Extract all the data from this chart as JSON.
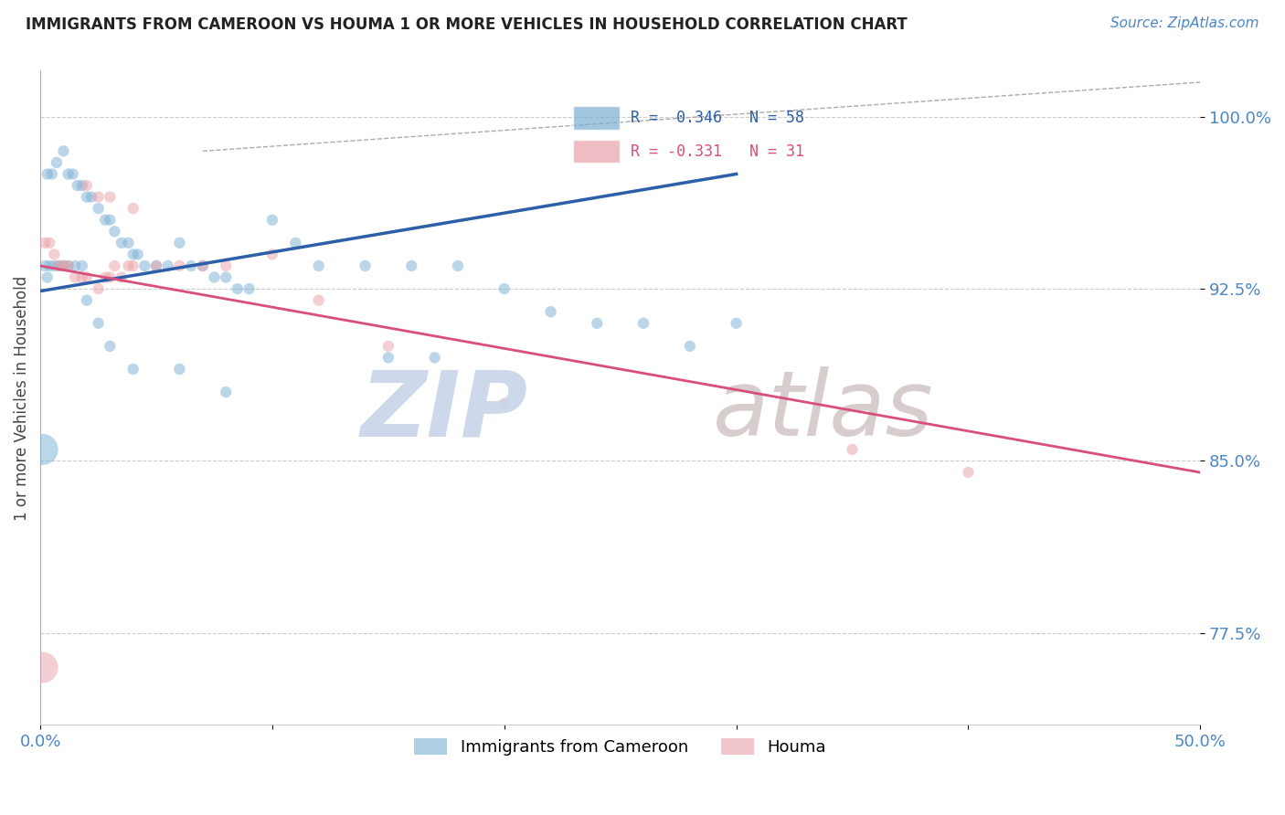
{
  "title": "IMMIGRANTS FROM CAMEROON VS HOUMA 1 OR MORE VEHICLES IN HOUSEHOLD CORRELATION CHART",
  "source_text": "Source: ZipAtlas.com",
  "ylabel": "1 or more Vehicles in Household",
  "xlim": [
    0.0,
    0.5
  ],
  "ylim": [
    0.735,
    1.02
  ],
  "yticks": [
    0.775,
    0.85,
    0.925,
    1.0
  ],
  "yticklabels": [
    "77.5%",
    "85.0%",
    "92.5%",
    "100.0%"
  ],
  "legend_label1": "Immigrants from Cameroon",
  "legend_label2": "Houma",
  "color_blue": "#7bafd4",
  "color_pink": "#e8a0a8",
  "color_blue_line": "#2c5fa8",
  "color_pink_line": "#d94f7a",
  "color_axis_labels": "#4a86c8",
  "blue_scatter_x": [
    0.003,
    0.005,
    0.007,
    0.01,
    0.012,
    0.014,
    0.016,
    0.018,
    0.02,
    0.022,
    0.025,
    0.028,
    0.03,
    0.032,
    0.035,
    0.038,
    0.04,
    0.042,
    0.045,
    0.05,
    0.055,
    0.06,
    0.065,
    0.07,
    0.075,
    0.08,
    0.085,
    0.09,
    0.1,
    0.11,
    0.12,
    0.14,
    0.16,
    0.18,
    0.2,
    0.22,
    0.24,
    0.26,
    0.28,
    0.3,
    0.15,
    0.17,
    0.08,
    0.06,
    0.04,
    0.03,
    0.025,
    0.02,
    0.018,
    0.015,
    0.012,
    0.01,
    0.008,
    0.006,
    0.004,
    0.003,
    0.002,
    0.001
  ],
  "blue_scatter_y": [
    0.975,
    0.975,
    0.98,
    0.985,
    0.975,
    0.975,
    0.97,
    0.97,
    0.965,
    0.965,
    0.96,
    0.955,
    0.955,
    0.95,
    0.945,
    0.945,
    0.94,
    0.94,
    0.935,
    0.935,
    0.935,
    0.945,
    0.935,
    0.935,
    0.93,
    0.93,
    0.925,
    0.925,
    0.955,
    0.945,
    0.935,
    0.935,
    0.935,
    0.935,
    0.925,
    0.915,
    0.91,
    0.91,
    0.9,
    0.91,
    0.895,
    0.895,
    0.88,
    0.89,
    0.89,
    0.9,
    0.91,
    0.92,
    0.935,
    0.935,
    0.935,
    0.935,
    0.935,
    0.935,
    0.935,
    0.93,
    0.935,
    0.855
  ],
  "blue_scatter_size": [
    80,
    80,
    80,
    80,
    80,
    80,
    80,
    80,
    80,
    80,
    80,
    80,
    80,
    80,
    80,
    80,
    80,
    80,
    80,
    80,
    80,
    80,
    80,
    80,
    80,
    80,
    80,
    80,
    80,
    80,
    80,
    80,
    80,
    80,
    80,
    80,
    80,
    80,
    80,
    80,
    80,
    80,
    80,
    80,
    80,
    80,
    80,
    80,
    80,
    80,
    80,
    80,
    80,
    80,
    80,
    80,
    80,
    600
  ],
  "pink_scatter_x": [
    0.002,
    0.004,
    0.006,
    0.008,
    0.01,
    0.012,
    0.015,
    0.018,
    0.02,
    0.025,
    0.028,
    0.03,
    0.032,
    0.035,
    0.038,
    0.04,
    0.05,
    0.06,
    0.07,
    0.08,
    0.1,
    0.12,
    0.15,
    0.2,
    0.35,
    0.4,
    0.02,
    0.025,
    0.03,
    0.04,
    0.001
  ],
  "pink_scatter_y": [
    0.945,
    0.945,
    0.94,
    0.935,
    0.935,
    0.935,
    0.93,
    0.93,
    0.93,
    0.925,
    0.93,
    0.93,
    0.935,
    0.93,
    0.935,
    0.935,
    0.935,
    0.935,
    0.935,
    0.935,
    0.94,
    0.92,
    0.9,
    0.875,
    0.855,
    0.845,
    0.97,
    0.965,
    0.965,
    0.96,
    0.76
  ],
  "pink_scatter_size": [
    80,
    80,
    80,
    80,
    80,
    80,
    80,
    80,
    80,
    80,
    80,
    80,
    80,
    80,
    80,
    80,
    80,
    80,
    80,
    80,
    80,
    80,
    80,
    80,
    80,
    80,
    80,
    80,
    80,
    80,
    600
  ],
  "blue_line_x": [
    0.0,
    0.3
  ],
  "blue_line_y": [
    0.924,
    0.975
  ],
  "pink_line_x": [
    0.0,
    0.5
  ],
  "pink_line_y": [
    0.935,
    0.845
  ],
  "diag_line_x": [
    0.07,
    0.5
  ],
  "diag_line_y": [
    0.985,
    1.015
  ],
  "watermark_zip_color": "#c8d4e8",
  "watermark_atlas_color": "#d4c8c8"
}
